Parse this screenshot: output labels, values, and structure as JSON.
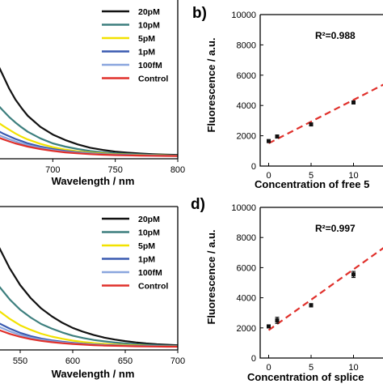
{
  "colors": {
    "20pM": "#111111",
    "10pM": "#3d7f7e",
    "5pM": "#f2e200",
    "1pM": "#3a5ab0",
    "100fM": "#8aa6de",
    "Control": "#e0302b",
    "fit": "#e0302b",
    "points": "#111111"
  },
  "chart_data": [
    {
      "type": "line",
      "panel_label": "",
      "xlabel": "Wavelength / nm",
      "ylabel": "",
      "xlim": [
        650,
        800
      ],
      "x_ticks": [
        "700",
        "750",
        "800"
      ],
      "legend_position": "top-right",
      "x": [
        650,
        655,
        660,
        665,
        670,
        675,
        680,
        690,
        700,
        710,
        720,
        730,
        740,
        750,
        760,
        770,
        780,
        790,
        800
      ],
      "series": [
        {
          "name": "20pM",
          "values": [
            1.0,
            0.88,
            0.76,
            0.64,
            0.54,
            0.46,
            0.39,
            0.29,
            0.22,
            0.17,
            0.13,
            0.1,
            0.08,
            0.065,
            0.055,
            0.048,
            0.042,
            0.038,
            0.035
          ]
        },
        {
          "name": "10pM",
          "values": [
            0.56,
            0.5,
            0.44,
            0.38,
            0.33,
            0.285,
            0.245,
            0.185,
            0.14,
            0.11,
            0.088,
            0.07,
            0.058,
            0.05,
            0.044,
            0.04,
            0.036,
            0.033,
            0.031
          ]
        },
        {
          "name": "5pM",
          "values": [
            0.38,
            0.34,
            0.3,
            0.265,
            0.23,
            0.2,
            0.175,
            0.135,
            0.105,
            0.083,
            0.068,
            0.056,
            0.048,
            0.042,
            0.038,
            0.035,
            0.032,
            0.03,
            0.028
          ]
        },
        {
          "name": "1pM",
          "values": [
            0.29,
            0.26,
            0.23,
            0.205,
            0.18,
            0.16,
            0.14,
            0.11,
            0.088,
            0.071,
            0.059,
            0.05,
            0.043,
            0.038,
            0.035,
            0.032,
            0.03,
            0.028,
            0.027
          ]
        },
        {
          "name": "100fM",
          "values": [
            0.25,
            0.225,
            0.2,
            0.178,
            0.158,
            0.14,
            0.124,
            0.098,
            0.079,
            0.064,
            0.054,
            0.046,
            0.04,
            0.036,
            0.033,
            0.03,
            0.029,
            0.027,
            0.026
          ]
        },
        {
          "name": "Control",
          "values": [
            0.22,
            0.2,
            0.178,
            0.158,
            0.14,
            0.125,
            0.11,
            0.088,
            0.071,
            0.058,
            0.049,
            0.042,
            0.037,
            0.033,
            0.031,
            0.029,
            0.027,
            0.026,
            0.025
          ]
        }
      ]
    },
    {
      "type": "scatter",
      "panel_label": "b)",
      "xlabel": "Concentration of free 5",
      "ylabel": "Fluorescence / a.u.",
      "ylim": [
        0,
        10000
      ],
      "xlim": [
        -1,
        15
      ],
      "y_ticks": [
        "0",
        "2000",
        "4000",
        "6000",
        "8000",
        "10000"
      ],
      "x_ticks": [
        "0",
        "5",
        "10"
      ],
      "annotation": "R²=0.988",
      "points": [
        {
          "x": 0,
          "y": 1650,
          "err": 80
        },
        {
          "x": 1,
          "y": 1950,
          "err": 100
        },
        {
          "x": 5,
          "y": 2750,
          "err": 70
        },
        {
          "x": 10,
          "y": 4200,
          "err": 90
        }
      ],
      "fit": {
        "x": [
          0,
          15
        ],
        "y": [
          1500,
          5800
        ]
      }
    },
    {
      "type": "line",
      "panel_label": "",
      "xlabel": "Wavelength / nm",
      "ylabel": "",
      "xlim": [
        500,
        700
      ],
      "x_ticks": [
        "550",
        "600",
        "650",
        "700"
      ],
      "legend_position": "top-right",
      "x": [
        500,
        505,
        510,
        515,
        520,
        525,
        530,
        540,
        550,
        560,
        570,
        580,
        590,
        600,
        610,
        620,
        630,
        640,
        650,
        660,
        670,
        680,
        690,
        700
      ],
      "series": [
        {
          "name": "20pM",
          "values": [
            0.6,
            0.82,
            0.97,
            1.0,
            0.96,
            0.88,
            0.79,
            0.63,
            0.5,
            0.4,
            0.32,
            0.26,
            0.21,
            0.17,
            0.14,
            0.115,
            0.095,
            0.08,
            0.068,
            0.058,
            0.05,
            0.044,
            0.04,
            0.036
          ]
        },
        {
          "name": "10pM",
          "values": [
            0.36,
            0.5,
            0.6,
            0.63,
            0.6,
            0.55,
            0.49,
            0.39,
            0.31,
            0.25,
            0.2,
            0.165,
            0.135,
            0.11,
            0.092,
            0.077,
            0.066,
            0.057,
            0.05,
            0.044,
            0.04,
            0.036,
            0.033,
            0.031
          ]
        },
        {
          "name": "5pM",
          "values": [
            0.22,
            0.3,
            0.36,
            0.38,
            0.36,
            0.33,
            0.3,
            0.24,
            0.19,
            0.155,
            0.125,
            0.103,
            0.086,
            0.072,
            0.061,
            0.053,
            0.047,
            0.042,
            0.038,
            0.035,
            0.032,
            0.03,
            0.029,
            0.028
          ]
        },
        {
          "name": "1pM",
          "values": [
            0.15,
            0.2,
            0.24,
            0.255,
            0.245,
            0.225,
            0.205,
            0.165,
            0.132,
            0.107,
            0.088,
            0.074,
            0.063,
            0.055,
            0.048,
            0.043,
            0.039,
            0.036,
            0.033,
            0.031,
            0.03,
            0.029,
            0.028,
            0.027
          ]
        },
        {
          "name": "100fM",
          "values": [
            0.13,
            0.175,
            0.21,
            0.222,
            0.213,
            0.196,
            0.178,
            0.144,
            0.116,
            0.095,
            0.079,
            0.067,
            0.058,
            0.051,
            0.045,
            0.041,
            0.037,
            0.034,
            0.032,
            0.03,
            0.029,
            0.028,
            0.027,
            0.026
          ]
        },
        {
          "name": "Control",
          "values": [
            0.11,
            0.15,
            0.18,
            0.19,
            0.183,
            0.168,
            0.153,
            0.124,
            0.101,
            0.083,
            0.07,
            0.06,
            0.052,
            0.046,
            0.041,
            0.037,
            0.034,
            0.032,
            0.03,
            0.028,
            0.027,
            0.026,
            0.025,
            0.025
          ]
        }
      ]
    },
    {
      "type": "scatter",
      "panel_label": "d)",
      "xlabel": "Concentration of splice",
      "ylabel": "Fluorescence / a.u.",
      "ylim": [
        0,
        10000
      ],
      "xlim": [
        -1,
        15
      ],
      "y_ticks": [
        "0",
        "2000",
        "4000",
        "6000",
        "8000",
        "10000"
      ],
      "x_ticks": [
        "0",
        "5",
        "10"
      ],
      "annotation": "R²=0.997",
      "points": [
        {
          "x": 0,
          "y": 2100,
          "err": 80
        },
        {
          "x": 1,
          "y": 2500,
          "err": 200
        },
        {
          "x": 5,
          "y": 3500,
          "err": 110
        },
        {
          "x": 10,
          "y": 5550,
          "err": 200
        }
      ],
      "fit": {
        "x": [
          0,
          15
        ],
        "y": [
          1850,
          7900
        ]
      }
    }
  ]
}
